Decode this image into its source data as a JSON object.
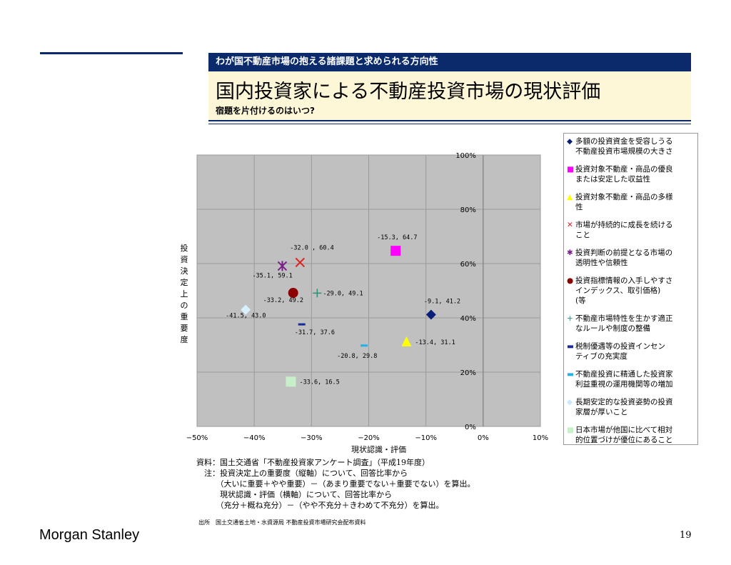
{
  "header": {
    "section": "わが国不動産市場の抱える諸課題と求められる方向性",
    "title": "国内投資家による不動産投資市場の現状評価",
    "subtitle": "宿題を片付けるのはいつ?"
  },
  "chart_data": {
    "type": "scatter",
    "xlabel": "現状認識・評価",
    "ylabel": "投資決定上の重要度",
    "xlim": [
      -50,
      10
    ],
    "ylim": [
      0,
      100
    ],
    "x_ticks": [
      "−50%",
      "−40%",
      "−30%",
      "−20%",
      "−10%",
      "0%",
      "10%"
    ],
    "y_ticks": [
      "0%",
      "20%",
      "40%",
      "60%",
      "80%",
      "100%"
    ],
    "grid": true,
    "legend_position": "right",
    "series": [
      {
        "name": "多額の投資資金を受容しうる不動産投資市場規模の大きさ",
        "x": -9.1,
        "y": 41.2,
        "label": "-9.1, 41.2",
        "marker": "diamond",
        "color": "#0b1f7a"
      },
      {
        "name": "投資対象不動産・商品の優良または安定した収益性",
        "x": -15.3,
        "y": 64.7,
        "label": "-15.3, 64.7",
        "marker": "square",
        "color": "#ff00ff"
      },
      {
        "name": "投資対象不動産・商品の多様性",
        "x": -13.4,
        "y": 31.1,
        "label": "-13.4, 31.1",
        "marker": "triangle",
        "color": "#ffff00"
      },
      {
        "name": "市場が持続的に成長を続けること",
        "x": -32.0,
        "y": 60.4,
        "label": "-32.0 , 60.4",
        "marker": "x",
        "color": "#e02020"
      },
      {
        "name": "投資判断の前提となる市場の透明性や信頼性",
        "x": -35.1,
        "y": 59.1,
        "label": "-35.1, 59.1",
        "marker": "star",
        "color": "#7a1f8a"
      },
      {
        "name": "投資指標情報の入手しやすさ インデックス、取引価格) (等",
        "x": -33.2,
        "y": 49.2,
        "label": "-33.2, 49.2",
        "marker": "circle",
        "color": "#8b0000"
      },
      {
        "name": "不動産市場特性を生かす適正なルールや制度の整備",
        "x": -29.0,
        "y": 49.1,
        "label": "-29.0, 49.1",
        "marker": "plus",
        "color": "#2e8b7a"
      },
      {
        "name": "税制優遇等の投資インセンティブの充実度",
        "x": -31.7,
        "y": 37.6,
        "label": "-31.7, 37.6",
        "marker": "dash",
        "color": "#1a2a9a"
      },
      {
        "name": "不動産投資に精通した投資家利益重視の運用機関等の増加",
        "x": -20.8,
        "y": 29.8,
        "label": "-20.8, 29.8",
        "marker": "dash",
        "color": "#22b0e8"
      },
      {
        "name": "長期安定的な投資姿勢の投資家層が厚いこと",
        "x": -41.5,
        "y": 43.0,
        "label": "-41.5, 43.0",
        "marker": "diamond",
        "color": "#d8f0ff"
      },
      {
        "name": "日本市場が他国に比べて相対的位置づけが優位にあること",
        "x": -33.6,
        "y": 16.5,
        "label": "-33.6, 16.5",
        "marker": "square",
        "color": "#c8f0c8"
      }
    ],
    "legend_lines": [
      [
        "多額の投資資金を受容しうる",
        "不動産投資市場規模の大きさ"
      ],
      [
        "投資対象不動産・商品の優良",
        "または安定した収益性"
      ],
      [
        "投資対象不動産・商品の多様",
        "性"
      ],
      [
        "市場が持続的に成長を続ける",
        "こと"
      ],
      [
        "投資判断の前提となる市場の",
        "透明性や信頼性"
      ],
      [
        "投資指標情報の入手しやすさ",
        "インデックス、取引価格)",
        "(等"
      ],
      [
        "不動産市場特性を生かす適正",
        "なルールや制度の整備"
      ],
      [
        "税制優遇等の投資インセン",
        "ティブの充実度"
      ],
      [
        "不動産投資に精通した投資家",
        "利益重視の運用機関等の増加"
      ],
      [
        "長期安定的な投資姿勢の投資",
        "家層が厚いこと"
      ],
      [
        "日本市場が他国に比べて相対",
        "的位置づけが優位にあること"
      ]
    ]
  },
  "notes": {
    "line1": "資料：国土交通省「不動産投資家アンケート調査」（平成19年度）",
    "line2": "　注：投資決定上の重要度（縦軸）について、回答比率から",
    "line3": "　　　（大いに重要＋やや重要）－（あまり重要でない＋重要でない）を算出。",
    "line4": "　　　現状認識・評価（横軸）について、回答比率から",
    "line5": "　　　（充分＋概ね充分）－（やや不充分＋きわめて不充分）を算出。"
  },
  "source": "出所　国土交通省土地・水資源局 不動産投資市場研究会配布資料",
  "footer": {
    "logo": "Morgan Stanley",
    "page": "19"
  }
}
